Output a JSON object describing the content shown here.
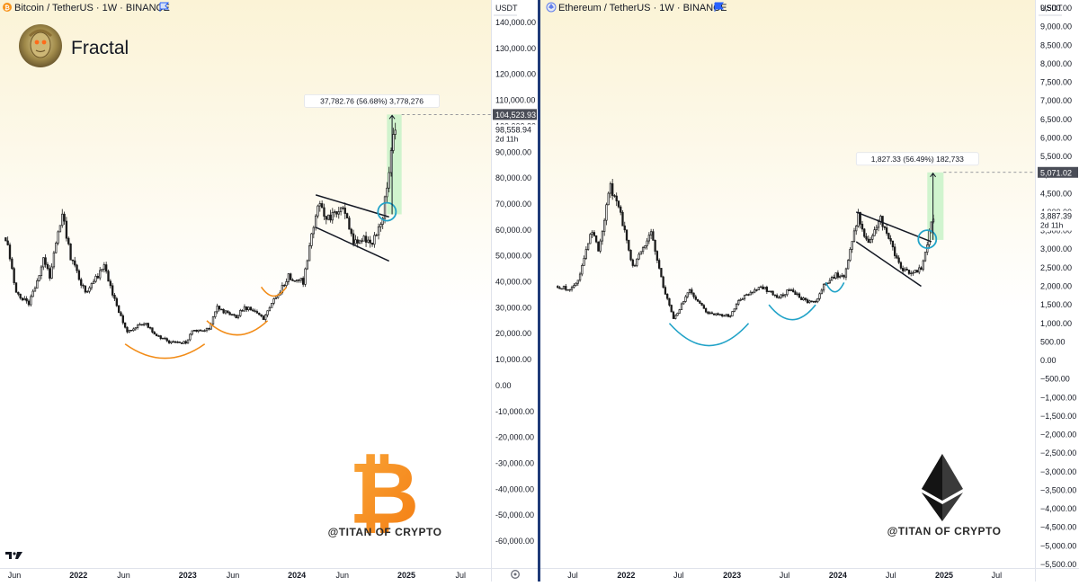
{
  "brand": {
    "name": "Fractal"
  },
  "watermark": "@TITAN OF CRYPTO",
  "colors": {
    "bg_top": "#fbf3d6",
    "bg_bottom": "#ffffff",
    "divider": "#1f3a78",
    "candle": "#1a1a1a",
    "target_box": "#c8f2c8",
    "curve_btc": "#f28c18",
    "curve_eth": "#22a3c8",
    "circle": "#22a3c8",
    "bitcoin_orange": "#f7931a"
  },
  "chart_data": [
    {
      "type": "candlestick",
      "title": "Bitcoin / TetherUS · 1W · BINANCE",
      "symbol_icon": "bitcoin-icon",
      "currency": "USDT",
      "y_ticks": [
        140000,
        130000,
        120000,
        110000,
        100000,
        90000,
        80000,
        70000,
        60000,
        50000,
        40000,
        30000,
        20000,
        10000,
        0,
        -10000,
        -20000,
        -30000,
        -40000,
        -50000,
        -60000
      ],
      "y_tick_labels": [
        "140,000.00",
        "130,000.00",
        "120,000.00",
        "110,000.00",
        "100,000.00",
        "90,000.00",
        "80,000.00",
        "70,000.00",
        "60,000.00",
        "50,000.00",
        "40,000.00",
        "30,000.00",
        "20,000.00",
        "10,000.00",
        "0.00",
        "-10,000.00",
        "-20,000.00",
        "-30,000.00",
        "-40,000.00",
        "-50,000.00",
        "-60,000.00"
      ],
      "x_ticks": [
        "Jun",
        "2022",
        "Jun",
        "2023",
        "Jun",
        "2024",
        "Jun",
        "2025",
        "Jul"
      ],
      "x_tick_dates": [
        "2021-06-01",
        "2022-01-01",
        "2022-06-01",
        "2023-01-01",
        "2023-06-01",
        "2024-01-01",
        "2024-06-01",
        "2025-01-01",
        "2025-07-01"
      ],
      "price_path": [
        [
          "2021-05-03",
          57000
        ],
        [
          "2021-06-07",
          36000
        ],
        [
          "2021-07-19",
          31000
        ],
        [
          "2021-09-06",
          48000
        ],
        [
          "2021-09-27",
          42000
        ],
        [
          "2021-11-08",
          66000
        ],
        [
          "2021-12-06",
          49000
        ],
        [
          "2022-01-24",
          36000
        ],
        [
          "2022-03-28",
          46000
        ],
        [
          "2022-05-09",
          30000
        ],
        [
          "2022-06-13",
          21000
        ],
        [
          "2022-08-15",
          24000
        ],
        [
          "2022-09-12",
          19500
        ],
        [
          "2022-11-07",
          16500
        ],
        [
          "2022-12-26",
          16600
        ],
        [
          "2023-01-16",
          21000
        ],
        [
          "2023-03-13",
          22000
        ],
        [
          "2023-04-10",
          30000
        ],
        [
          "2023-06-12",
          26000
        ],
        [
          "2023-07-10",
          30500
        ],
        [
          "2023-09-11",
          26000
        ],
        [
          "2023-10-23",
          34000
        ],
        [
          "2023-12-04",
          42000
        ],
        [
          "2024-01-22",
          40000
        ],
        [
          "2024-03-11",
          71000
        ],
        [
          "2024-04-15",
          64000
        ],
        [
          "2024-06-03",
          70000
        ],
        [
          "2024-07-08",
          55000
        ],
        [
          "2024-08-05",
          57000
        ],
        [
          "2024-09-09",
          55000
        ],
        [
          "2024-10-14",
          66000
        ],
        [
          "2024-11-11",
          90000
        ],
        [
          "2024-11-25",
          98558
        ]
      ],
      "last_price": 98558.94,
      "last_price_label": "98,558.94",
      "countdown": "2d 11h",
      "target_price": 104523.93,
      "target_label": "104,523.93",
      "measure_label": "37,782.76 (56.68%) 3,778,276",
      "target_box": {
        "x0": "2024-10-28",
        "x1": "2024-12-16",
        "y0": 66000,
        "y1": 104523.93
      },
      "wedge_upper": [
        [
          "2024-03-04",
          73500
        ],
        [
          "2024-11-04",
          65000
        ]
      ],
      "wedge_lower": [
        [
          "2024-03-04",
          61000
        ],
        [
          "2024-11-04",
          48000
        ]
      ],
      "breakout_circle": {
        "x": "2024-10-28",
        "y": 67000
      },
      "curves": [
        {
          "x0": "2022-06-06",
          "x1": "2023-02-27",
          "y_top": 16000,
          "y_bottom": 10500
        },
        {
          "x0": "2023-03-06",
          "x1": "2023-09-25",
          "y_top": 25000,
          "y_bottom": 19500
        },
        {
          "x0": "2023-09-04",
          "x1": "2023-11-27",
          "y_top": 38000,
          "y_bottom": 34500
        }
      ]
    },
    {
      "type": "candlestick",
      "title": "Ethereum / TetherUS · 1W · BINANCE",
      "symbol_icon": "ethereum-icon",
      "currency": "USDT",
      "y_ticks": [
        9500,
        9000,
        8500,
        8000,
        7500,
        7000,
        6500,
        6000,
        5500,
        5000,
        4500,
        4000,
        3500,
        3000,
        2500,
        2000,
        1500,
        1000,
        500,
        0,
        -500,
        -1000,
        -1500,
        -2000,
        -2500,
        -3000,
        -3500,
        -4000,
        -4500,
        -5000,
        -5500
      ],
      "y_tick_labels": [
        "9,500.00",
        "9,000.00",
        "8,500.00",
        "8,000.00",
        "7,500.00",
        "7,000.00",
        "6,500.00",
        "6,000.00",
        "5,500.00",
        "5,000.00",
        "4,500.00",
        "4,000.00",
        "3,500.00",
        "3,000.00",
        "2,500.00",
        "2,000.00",
        "1,500.00",
        "1,000.00",
        "500.00",
        "0.00",
        "−500.00",
        "−1,000.00",
        "−1,500.00",
        "−2,000.00",
        "−2,500.00",
        "−3,000.00",
        "−3,500.00",
        "−4,000.00",
        "−4,500.00",
        "−5,000.00",
        "−5,500.00"
      ],
      "x_ticks": [
        "Jul",
        "2022",
        "Jul",
        "2023",
        "Jul",
        "2024",
        "Jul",
        "2025",
        "Jul"
      ],
      "x_tick_dates": [
        "2021-07-01",
        "2022-01-01",
        "2022-07-01",
        "2023-01-01",
        "2023-07-01",
        "2024-01-01",
        "2024-07-01",
        "2025-01-01",
        "2025-07-01"
      ],
      "price_path": [
        [
          "2021-05-10",
          2000
        ],
        [
          "2021-06-21",
          1900
        ],
        [
          "2021-07-19",
          2200
        ],
        [
          "2021-09-06",
          3500
        ],
        [
          "2021-09-27",
          3000
        ],
        [
          "2021-11-08",
          4700
        ],
        [
          "2021-12-13",
          3900
        ],
        [
          "2022-01-24",
          2500
        ],
        [
          "2022-03-28",
          3400
        ],
        [
          "2022-05-09",
          2000
        ],
        [
          "2022-06-13",
          1100
        ],
        [
          "2022-08-08",
          1900
        ],
        [
          "2022-10-03",
          1300
        ],
        [
          "2022-11-07",
          1250
        ],
        [
          "2022-12-26",
          1200
        ],
        [
          "2023-01-23",
          1600
        ],
        [
          "2023-04-10",
          2000
        ],
        [
          "2023-06-12",
          1700
        ],
        [
          "2023-07-17",
          1900
        ],
        [
          "2023-09-11",
          1600
        ],
        [
          "2023-10-16",
          1550
        ],
        [
          "2023-11-13",
          2000
        ],
        [
          "2023-12-25",
          2300
        ],
        [
          "2024-01-22",
          2300
        ],
        [
          "2024-03-11",
          3900
        ],
        [
          "2024-04-15",
          3100
        ],
        [
          "2024-05-27",
          3800
        ],
        [
          "2024-07-08",
          3000
        ],
        [
          "2024-08-05",
          2500
        ],
        [
          "2024-09-09",
          2300
        ],
        [
          "2024-10-14",
          2500
        ],
        [
          "2024-11-04",
          3200
        ],
        [
          "2024-11-25",
          3887
        ]
      ],
      "last_price": 3887.39,
      "last_price_label": "3,887.39",
      "countdown": "2d 11h",
      "target_price": 5071.02,
      "target_label": "5,071.02",
      "measure_label": "1,827.33 (56.49%) 182,733",
      "target_box": {
        "x0": "2024-11-04",
        "x1": "2024-12-30",
        "y0": 3250,
        "y1": 5071.02
      },
      "wedge_upper": [
        [
          "2024-03-04",
          4000
        ],
        [
          "2024-11-18",
          3200
        ]
      ],
      "wedge_lower": [
        [
          "2024-03-04",
          3200
        ],
        [
          "2024-10-14",
          2000
        ]
      ],
      "breakout_circle": {
        "x": "2024-11-04",
        "y": 3270
      },
      "curves": [
        {
          "x0": "2022-05-30",
          "x1": "2023-02-27",
          "y_top": 1000,
          "y_bottom": 400
        },
        {
          "x0": "2023-05-08",
          "x1": "2023-10-16",
          "y_top": 1500,
          "y_bottom": 1100
        },
        {
          "x0": "2023-11-20",
          "x1": "2024-01-22",
          "y_top": 2100,
          "y_bottom": 1850
        }
      ]
    }
  ],
  "toolbar": {
    "logo": "tv-logo",
    "settings_icon": "gear-icon"
  }
}
